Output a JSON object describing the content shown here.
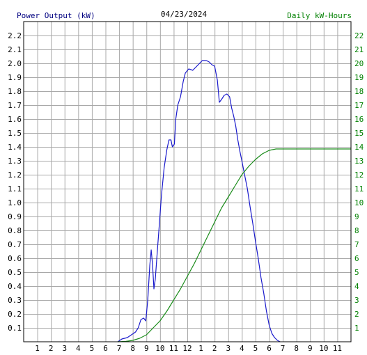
{
  "chart_data": {
    "type": "line",
    "title": "04/23/2024",
    "left_axis_label": "Power Output (kW)",
    "right_axis_label": "Daily kW-Hours",
    "x_ticks": [
      "1",
      "2",
      "3",
      "4",
      "5",
      "6",
      "7",
      "8",
      "9",
      "10",
      "11",
      "12",
      "1",
      "2",
      "3",
      "4",
      "5",
      "6",
      "7",
      "8",
      "9",
      "10",
      "11"
    ],
    "y_left_ticks": [
      "0.1",
      "0.2",
      "0.3",
      "0.4",
      "0.5",
      "0.6",
      "0.7",
      "0.8",
      "0.9",
      "1.0",
      "1.1",
      "1.2",
      "1.3",
      "1.4",
      "1.5",
      "1.6",
      "1.7",
      "1.8",
      "1.9",
      "2.0",
      "2.1",
      "2.2"
    ],
    "y_right_ticks": [
      "1",
      "2",
      "3",
      "4",
      "5",
      "6",
      "7",
      "8",
      "9",
      "10",
      "11",
      "12",
      "13",
      "14",
      "15",
      "16",
      "17",
      "18",
      "19",
      "20",
      "21",
      "22"
    ],
    "x_range_hours": [
      0,
      24
    ],
    "y_left_range": [
      0,
      2.3
    ],
    "y_right_range": [
      0,
      23
    ],
    "grid": true,
    "colors": {
      "power": "#1a1acc",
      "energy": "#1a8c1a",
      "left_axis_text": "#000080",
      "right_axis_text": "#008000",
      "grid": "#a8a8a8"
    },
    "series": [
      {
        "name": "Power Output (kW)",
        "axis": "left",
        "points": [
          [
            6.9,
            0
          ],
          [
            7.2,
            0.02
          ],
          [
            7.6,
            0.03
          ],
          [
            7.9,
            0.05
          ],
          [
            8.2,
            0.07
          ],
          [
            8.4,
            0.1
          ],
          [
            8.6,
            0.16
          ],
          [
            8.8,
            0.17
          ],
          [
            8.95,
            0.15
          ],
          [
            9.1,
            0.3
          ],
          [
            9.25,
            0.55
          ],
          [
            9.35,
            0.66
          ],
          [
            9.45,
            0.55
          ],
          [
            9.55,
            0.38
          ],
          [
            9.65,
            0.45
          ],
          [
            9.8,
            0.65
          ],
          [
            9.95,
            0.85
          ],
          [
            10.1,
            1.05
          ],
          [
            10.3,
            1.25
          ],
          [
            10.5,
            1.38
          ],
          [
            10.65,
            1.45
          ],
          [
            10.8,
            1.45
          ],
          [
            10.9,
            1.4
          ],
          [
            11.05,
            1.42
          ],
          [
            11.15,
            1.6
          ],
          [
            11.3,
            1.7
          ],
          [
            11.5,
            1.76
          ],
          [
            11.7,
            1.87
          ],
          [
            11.85,
            1.93
          ],
          [
            12.1,
            1.96
          ],
          [
            12.4,
            1.95
          ],
          [
            12.7,
            1.98
          ],
          [
            12.9,
            2.0
          ],
          [
            13.1,
            2.02
          ],
          [
            13.4,
            2.02
          ],
          [
            13.6,
            2.01
          ],
          [
            13.8,
            1.99
          ],
          [
            14.0,
            1.98
          ],
          [
            14.2,
            1.88
          ],
          [
            14.35,
            1.72
          ],
          [
            14.5,
            1.74
          ],
          [
            14.7,
            1.77
          ],
          [
            14.9,
            1.78
          ],
          [
            15.1,
            1.76
          ],
          [
            15.25,
            1.68
          ],
          [
            15.4,
            1.62
          ],
          [
            15.55,
            1.55
          ],
          [
            15.7,
            1.45
          ],
          [
            15.85,
            1.37
          ],
          [
            16.0,
            1.3
          ],
          [
            16.2,
            1.2
          ],
          [
            16.4,
            1.1
          ],
          [
            16.6,
            0.97
          ],
          [
            16.8,
            0.85
          ],
          [
            17.0,
            0.72
          ],
          [
            17.2,
            0.6
          ],
          [
            17.4,
            0.46
          ],
          [
            17.6,
            0.35
          ],
          [
            17.8,
            0.22
          ],
          [
            18.0,
            0.12
          ],
          [
            18.2,
            0.06
          ],
          [
            18.4,
            0.03
          ],
          [
            18.6,
            0.01
          ],
          [
            18.8,
            0.0
          ]
        ]
      },
      {
        "name": "Daily kW-Hours",
        "axis": "right",
        "points": [
          [
            6.9,
            0
          ],
          [
            7.5,
            0.03
          ],
          [
            8.0,
            0.1
          ],
          [
            8.5,
            0.25
          ],
          [
            9.0,
            0.5
          ],
          [
            9.5,
            1.0
          ],
          [
            10.0,
            1.5
          ],
          [
            10.5,
            2.2
          ],
          [
            11.0,
            3.0
          ],
          [
            11.5,
            3.8
          ],
          [
            12.0,
            4.7
          ],
          [
            12.5,
            5.6
          ],
          [
            13.0,
            6.6
          ],
          [
            13.5,
            7.6
          ],
          [
            14.0,
            8.6
          ],
          [
            14.5,
            9.6
          ],
          [
            15.0,
            10.4
          ],
          [
            15.5,
            11.2
          ],
          [
            16.0,
            12.0
          ],
          [
            16.5,
            12.6
          ],
          [
            17.0,
            13.1
          ],
          [
            17.5,
            13.5
          ],
          [
            18.0,
            13.75
          ],
          [
            18.5,
            13.85
          ],
          [
            19.0,
            13.85
          ],
          [
            24.0,
            13.85
          ]
        ]
      }
    ]
  }
}
